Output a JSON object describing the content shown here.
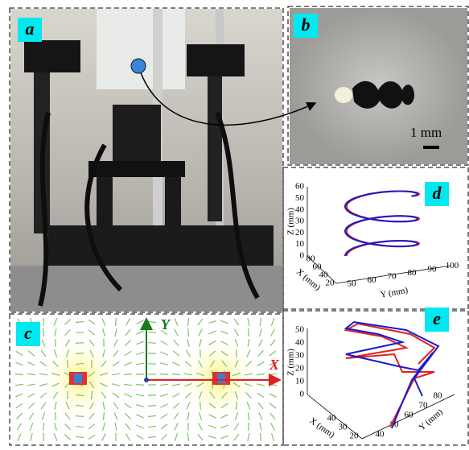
{
  "panels": {
    "a": {
      "label": "a"
    },
    "b": {
      "label": "b",
      "scale_label": "1 mm"
    },
    "c": {
      "label": "c",
      "x_axis": "X",
      "y_axis": "Y"
    },
    "d": {
      "label": "d",
      "z_axis_label": "Z (mm)",
      "z_ticks": [
        "0",
        "10",
        "20",
        "30",
        "40",
        "50",
        "60"
      ],
      "x_axis_label": "X (mm)",
      "x_ticks": [
        "80",
        "60",
        "40",
        "20"
      ],
      "y_axis_label": "Y (mm)",
      "y_ticks": [
        "50",
        "60",
        "70",
        "80",
        "90",
        "100"
      ]
    },
    "e": {
      "label": "e",
      "z_axis_label": "Z (mm)",
      "z_ticks": [
        "0",
        "10",
        "20",
        "30",
        "40",
        "50"
      ],
      "x_axis_label": "X (mm)",
      "x_ticks": [
        "40",
        "30",
        "20"
      ],
      "y_axis_label": "Y (mm)",
      "y_ticks": [
        "40",
        "50",
        "60",
        "70",
        "80"
      ]
    }
  }
}
